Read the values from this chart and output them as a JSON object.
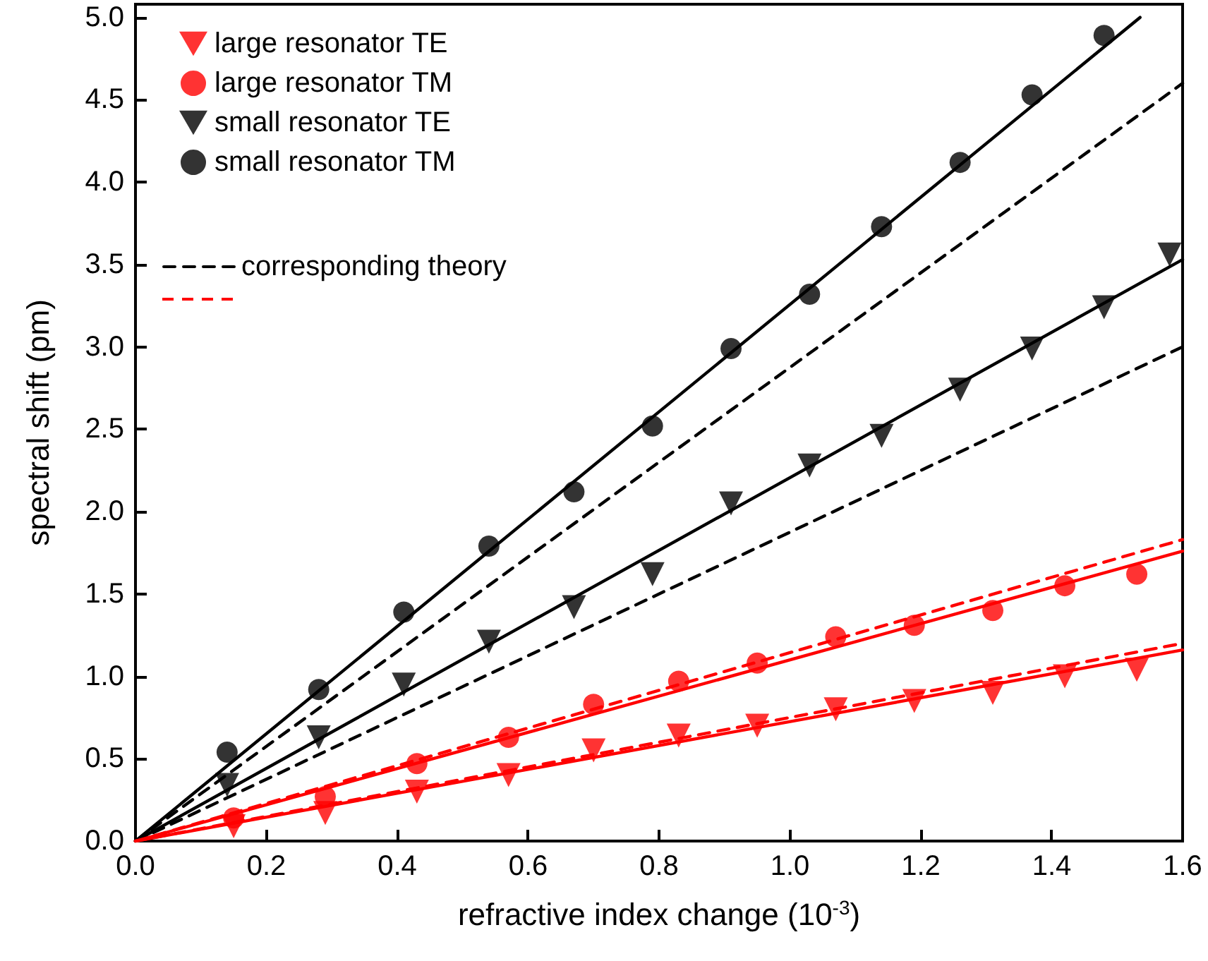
{
  "chart_data": {
    "type": "scatter",
    "xlabel": "refractive index change (10$^{-3}$)",
    "ylabel": "spectral shift (pm)",
    "xlim": [
      0,
      1.6
    ],
    "ylim": [
      0,
      5.08
    ],
    "xticks": [
      {
        "value": 0,
        "label": "0.0"
      },
      {
        "value": 0.2,
        "label": "0.2"
      },
      {
        "value": 0.4,
        "label": "0.4"
      },
      {
        "value": 0.6,
        "label": "0.6"
      },
      {
        "value": 0.8,
        "label": "0.8"
      },
      {
        "value": 1.0,
        "label": "1.0"
      },
      {
        "value": 1.2,
        "label": "1.2"
      },
      {
        "value": 1.4,
        "label": "1.4"
      },
      {
        "value": 1.6,
        "label": "1.6"
      }
    ],
    "yticks": [
      {
        "value": 0,
        "label": "0.0"
      },
      {
        "value": 0.5,
        "label": "0.5"
      },
      {
        "value": 1.0,
        "label": "1.0"
      },
      {
        "value": 1.5,
        "label": "1.5"
      },
      {
        "value": 2.0,
        "label": "2.0"
      },
      {
        "value": 2.5,
        "label": "2.5"
      },
      {
        "value": 3.0,
        "label": "3.0"
      },
      {
        "value": 3.5,
        "label": "3.5"
      },
      {
        "value": 4.0,
        "label": "4.0"
      },
      {
        "value": 4.5,
        "label": "4.5"
      },
      {
        "value": 5.0,
        "label": "5.0"
      }
    ],
    "grid": false,
    "legend": "top left",
    "series": [
      {
        "name": "large resonator TE",
        "type": "scatter",
        "marker": "triangle",
        "color": "#ff0000",
        "x": [
          0.15,
          0.29,
          0.43,
          0.57,
          0.7,
          0.83,
          0.95,
          1.07,
          1.19,
          1.31,
          1.42,
          1.53
        ],
        "values": [
          0.09,
          0.17,
          0.3,
          0.4,
          0.55,
          0.64,
          0.7,
          0.8,
          0.85,
          0.9,
          1.0,
          1.04
        ]
      },
      {
        "name": "large resonator TM",
        "type": "scatter",
        "marker": "circle",
        "color": "#ff0000",
        "x": [
          0.15,
          0.29,
          0.43,
          0.57,
          0.7,
          0.83,
          0.95,
          1.07,
          1.19,
          1.31,
          1.42,
          1.53
        ],
        "values": [
          0.14,
          0.27,
          0.47,
          0.63,
          0.83,
          0.97,
          1.08,
          1.24,
          1.31,
          1.4,
          1.55,
          1.62
        ]
      },
      {
        "name": "small resonator TE",
        "type": "scatter",
        "marker": "triangle",
        "color": "#000000",
        "x": [
          0.14,
          0.28,
          0.41,
          0.54,
          0.67,
          0.79,
          0.91,
          1.03,
          1.14,
          1.26,
          1.37,
          1.48,
          1.58
        ],
        "values": [
          0.34,
          0.63,
          0.95,
          1.21,
          1.42,
          1.62,
          2.05,
          2.28,
          2.46,
          2.74,
          2.99,
          3.24,
          3.56
        ]
      },
      {
        "name": "small resonator TM",
        "type": "scatter",
        "marker": "circle",
        "color": "#000000",
        "x": [
          0.14,
          0.28,
          0.41,
          0.54,
          0.67,
          0.79,
          0.91,
          1.03,
          1.14,
          1.26,
          1.37,
          1.48
        ],
        "values": [
          0.54,
          0.92,
          1.39,
          1.79,
          2.12,
          2.52,
          2.99,
          3.32,
          3.73,
          4.12,
          4.53,
          4.89
        ]
      },
      {
        "name": "corresponding theory",
        "type": "line",
        "line_style": "dashed",
        "color": "#000000",
        "x": [
          0,
          1.6
        ],
        "values": [
          0,
          4.6
        ]
      },
      {
        "type": "line",
        "line_style": "dashed",
        "color": "#000000",
        "x": [
          0,
          1.6
        ],
        "values": [
          0,
          3.0
        ]
      },
      {
        "type": "line",
        "line_style": "dashed",
        "color": "#ff0000",
        "x": [
          0,
          1.6
        ],
        "values": [
          0,
          1.83
        ]
      },
      {
        "type": "line",
        "line_style": "dashed",
        "color": "#ff0000",
        "x": [
          0,
          1.6
        ],
        "values": [
          0,
          1.2
        ]
      },
      {
        "type": "line",
        "line_style": "solid",
        "color": "#000000",
        "x": [
          0,
          1.535
        ],
        "values": [
          0,
          5.0
        ]
      },
      {
        "type": "line",
        "line_style": "solid",
        "color": "#000000",
        "x": [
          0,
          1.6
        ],
        "values": [
          0,
          3.53
        ]
      },
      {
        "type": "line",
        "line_style": "solid",
        "color": "#ff0000",
        "x": [
          0,
          1.6
        ],
        "values": [
          0,
          1.76
        ]
      },
      {
        "type": "line",
        "line_style": "solid",
        "color": "#ff0000",
        "x": [
          0,
          1.6
        ],
        "values": [
          0,
          1.16
        ]
      }
    ]
  }
}
